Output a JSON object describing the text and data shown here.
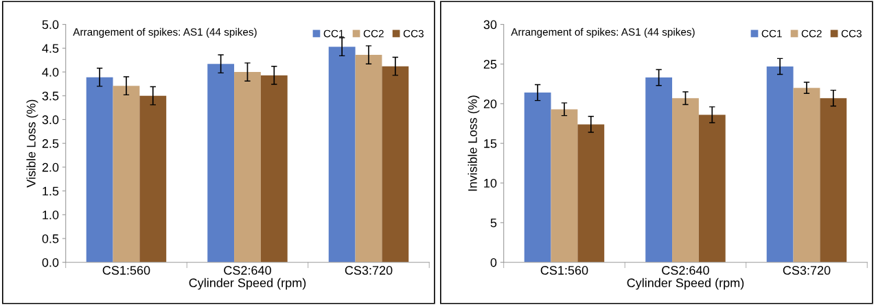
{
  "chart_data": [
    {
      "type": "bar",
      "xlabel": "Cylinder Speed (rpm)",
      "ylabel": "Visible Loss (%)",
      "annotations": [
        "Arrangement of spikes: AS1 (44 spikes)"
      ],
      "categories": [
        "CS1:560",
        "CS2:640",
        "CS3:720"
      ],
      "series": [
        {
          "name": "CC1",
          "color": "#5b7fc8",
          "values": [
            3.89,
            4.17,
            4.53
          ],
          "errors": [
            0.19,
            0.19,
            0.19
          ]
        },
        {
          "name": "CC2",
          "color": "#c9a57a",
          "values": [
            3.71,
            4.0,
            4.36
          ],
          "errors": [
            0.19,
            0.19,
            0.19
          ]
        },
        {
          "name": "CC3",
          "color": "#8b5a2b",
          "values": [
            3.5,
            3.93,
            4.12
          ],
          "errors": [
            0.19,
            0.19,
            0.19
          ]
        }
      ],
      "ylim": [
        0,
        5
      ],
      "yticks": [
        {
          "value": 0,
          "label": "0.0"
        },
        0.5,
        {
          "value": 1,
          "label": "1.0"
        },
        1.5,
        {
          "value": 2,
          "label": "2.0"
        },
        2.5,
        {
          "value": 3,
          "label": "3.0"
        },
        3.5,
        {
          "value": 4,
          "label": "4.0"
        },
        4.5,
        {
          "value": 5,
          "label": "5.0"
        }
      ],
      "grid": false,
      "legend": "top right"
    },
    {
      "type": "bar",
      "xlabel": "Cylinder Speed (rpm)",
      "ylabel": "Invisible Loss (%)",
      "annotations": [
        "Arrangement of spikes: AS1 (44 spikes)"
      ],
      "categories": [
        "CS1:560",
        "CS2:640",
        "CS3:720"
      ],
      "series": [
        {
          "name": "CC1",
          "color": "#5b7fc8",
          "values": [
            21.4,
            23.3,
            24.7
          ],
          "errors": [
            1.0,
            1.0,
            1.0
          ]
        },
        {
          "name": "CC2",
          "color": "#c9a57a",
          "values": [
            19.3,
            20.7,
            22.0
          ],
          "errors": [
            0.8,
            0.8,
            0.7
          ]
        },
        {
          "name": "CC3",
          "color": "#8b5a2b",
          "values": [
            17.4,
            18.6,
            20.7
          ],
          "errors": [
            1.0,
            1.0,
            1.0
          ]
        }
      ],
      "ylim": [
        0,
        30
      ],
      "yticks": [
        0,
        5,
        10,
        15,
        20,
        25,
        30
      ],
      "grid": false,
      "legend": "top right"
    }
  ]
}
